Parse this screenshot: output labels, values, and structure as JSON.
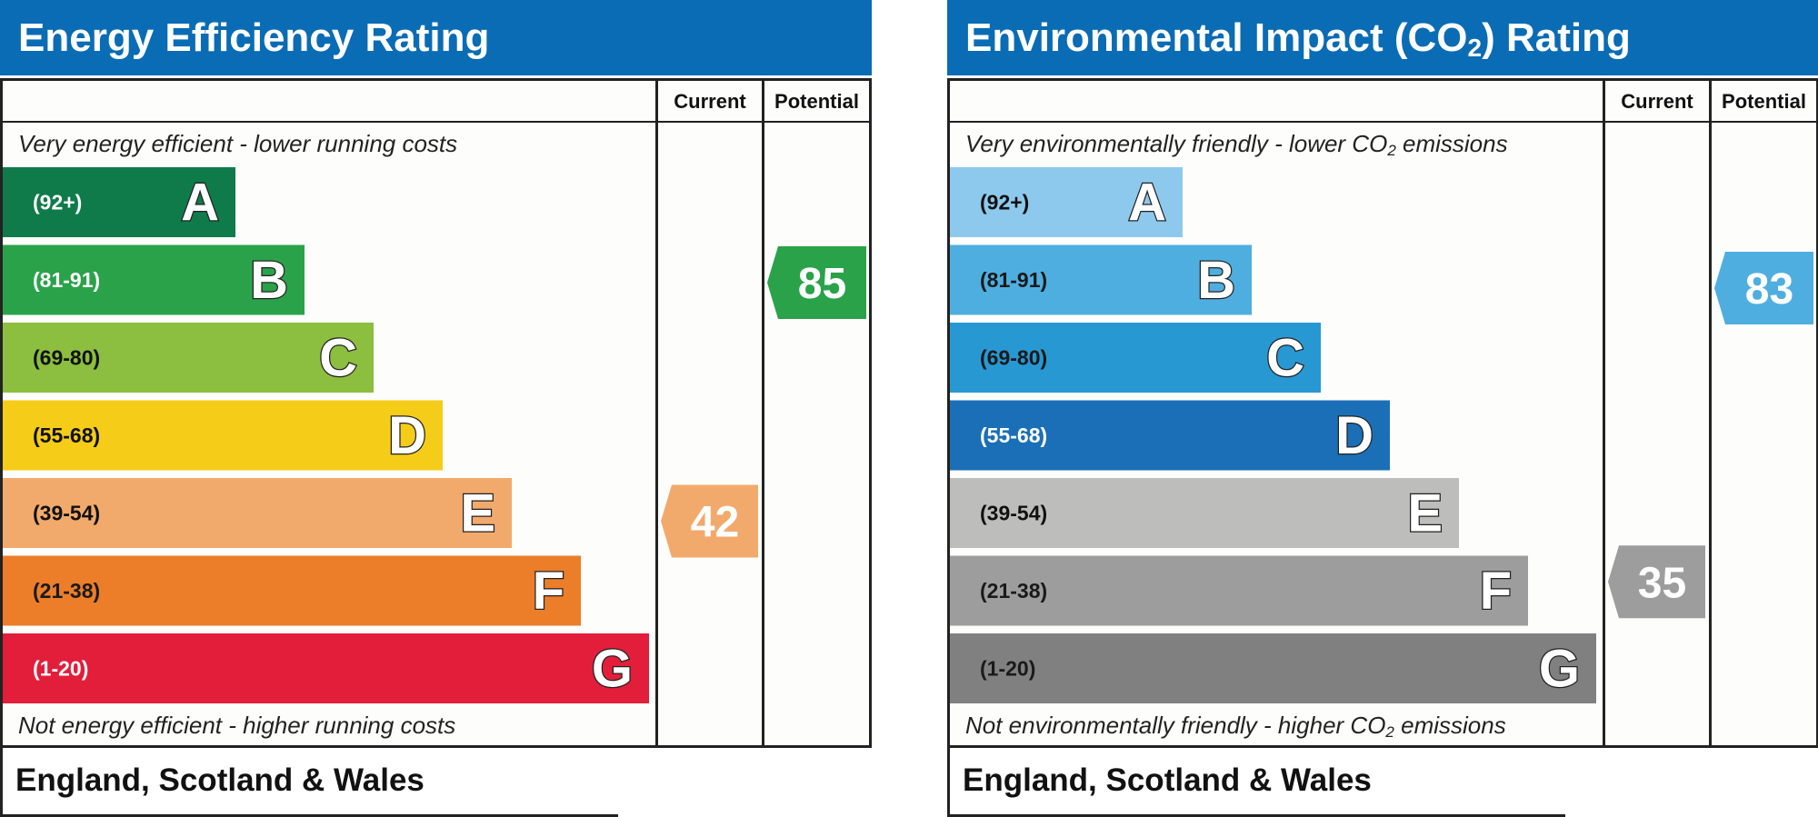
{
  "panels": [
    {
      "title": "Energy Efficiency Rating",
      "title_sub": "",
      "title_suffix": "",
      "columns": {
        "current": "Current",
        "potential": "Potential"
      },
      "top_caption": "Very energy efficient - lower running costs",
      "bottom_caption": "Not energy efficient - higher running costs",
      "region": "England, Scotland & Wales",
      "chart_data": {
        "type": "bar",
        "bands": [
          {
            "range": "(92+)",
            "letter": "A",
            "color": "#0f7b4a"
          },
          {
            "range": "(81-91)",
            "letter": "B",
            "color": "#2aa24a"
          },
          {
            "range": "(69-80)",
            "letter": "C",
            "color": "#8cbe3f"
          },
          {
            "range": "(55-68)",
            "letter": "D",
            "color": "#f5cc18"
          },
          {
            "range": "(39-54)",
            "letter": "E",
            "color": "#f2aa6c"
          },
          {
            "range": "(21-38)",
            "letter": "F",
            "color": "#ec7e2a"
          },
          {
            "range": "(1-20)",
            "letter": "G",
            "color": "#e21e3a"
          }
        ],
        "current": {
          "value": 42,
          "band": "E",
          "color": "#f2aa6c"
        },
        "potential": {
          "value": 85,
          "band": "B",
          "color": "#2aa24a"
        }
      }
    },
    {
      "title": "Environmental Impact (CO",
      "title_sub": "2",
      "title_suffix": ") Rating",
      "columns": {
        "current": "Current",
        "potential": "Potential"
      },
      "top_caption": "Very environmentally friendly - lower CO",
      "top_caption_sub": "2",
      "top_caption_suffix": " emissions",
      "bottom_caption": "Not environmentally friendly - higher CO",
      "bottom_caption_sub": "2",
      "bottom_caption_suffix": " emissions",
      "region": "England, Scotland & Wales",
      "chart_data": {
        "type": "bar",
        "bands": [
          {
            "range": "(92+)",
            "letter": "A",
            "color": "#8dc9ec"
          },
          {
            "range": "(81-91)",
            "letter": "B",
            "color": "#4faee0"
          },
          {
            "range": "(69-80)",
            "letter": "C",
            "color": "#2898d3"
          },
          {
            "range": "(55-68)",
            "letter": "D",
            "color": "#1b6fb7"
          },
          {
            "range": "(39-54)",
            "letter": "E",
            "color": "#bdbdbb"
          },
          {
            "range": "(21-38)",
            "letter": "F",
            "color": "#9d9d9d"
          },
          {
            "range": "(1-20)",
            "letter": "G",
            "color": "#808080"
          }
        ],
        "current": {
          "value": 35,
          "band": "F",
          "color": "#9d9d9d"
        },
        "potential": {
          "value": 83,
          "band": "B",
          "color": "#4faee0"
        }
      }
    }
  ]
}
